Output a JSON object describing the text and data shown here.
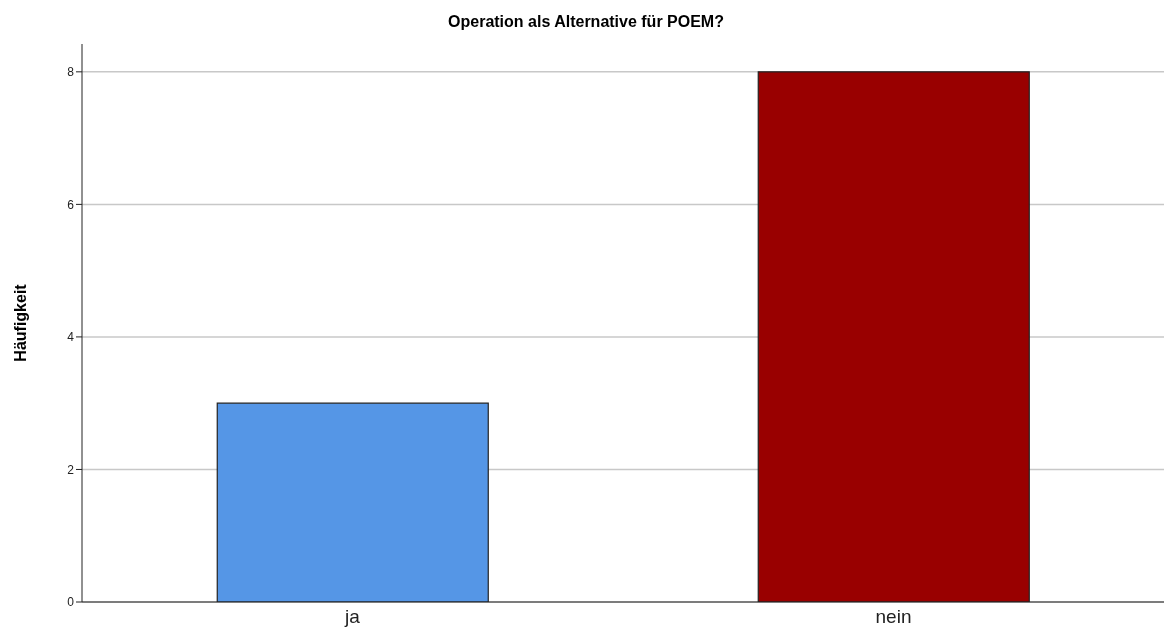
{
  "chart_data": {
    "type": "bar",
    "title": "Operation als Alternative für POEM?",
    "ylabel": "Häufigkeit",
    "categories": [
      "ja",
      "nein"
    ],
    "values": [
      3,
      8
    ],
    "colors": [
      "#5596e6",
      "#990000"
    ],
    "ylim": [
      0,
      8.42
    ],
    "yticks": [
      0,
      2,
      4,
      6,
      8
    ],
    "grid": "y"
  }
}
